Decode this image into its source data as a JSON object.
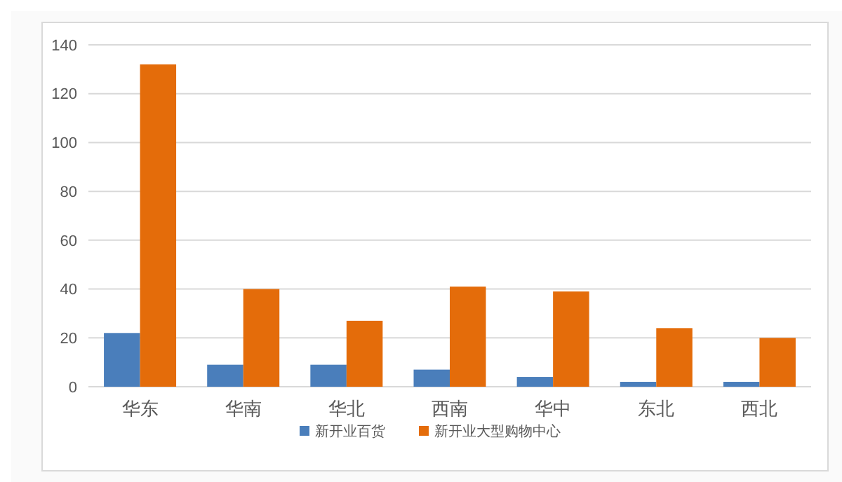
{
  "chart_data": {
    "type": "bar",
    "categories": [
      "华东",
      "华南",
      "华北",
      "西南",
      "华中",
      "东北",
      "西北"
    ],
    "series": [
      {
        "name": "新开业百货",
        "color": "#4a7ebb",
        "values": [
          22,
          9,
          9,
          7,
          4,
          2,
          2
        ]
      },
      {
        "name": "新开业大型购物中心",
        "color": "#e46c0a",
        "values": [
          132,
          40,
          27,
          41,
          39,
          24,
          20
        ]
      }
    ],
    "ylim": [
      0,
      140
    ],
    "yticks": [
      0,
      20,
      40,
      60,
      80,
      100,
      120,
      140
    ],
    "grid": "y",
    "legend": "bottom"
  }
}
